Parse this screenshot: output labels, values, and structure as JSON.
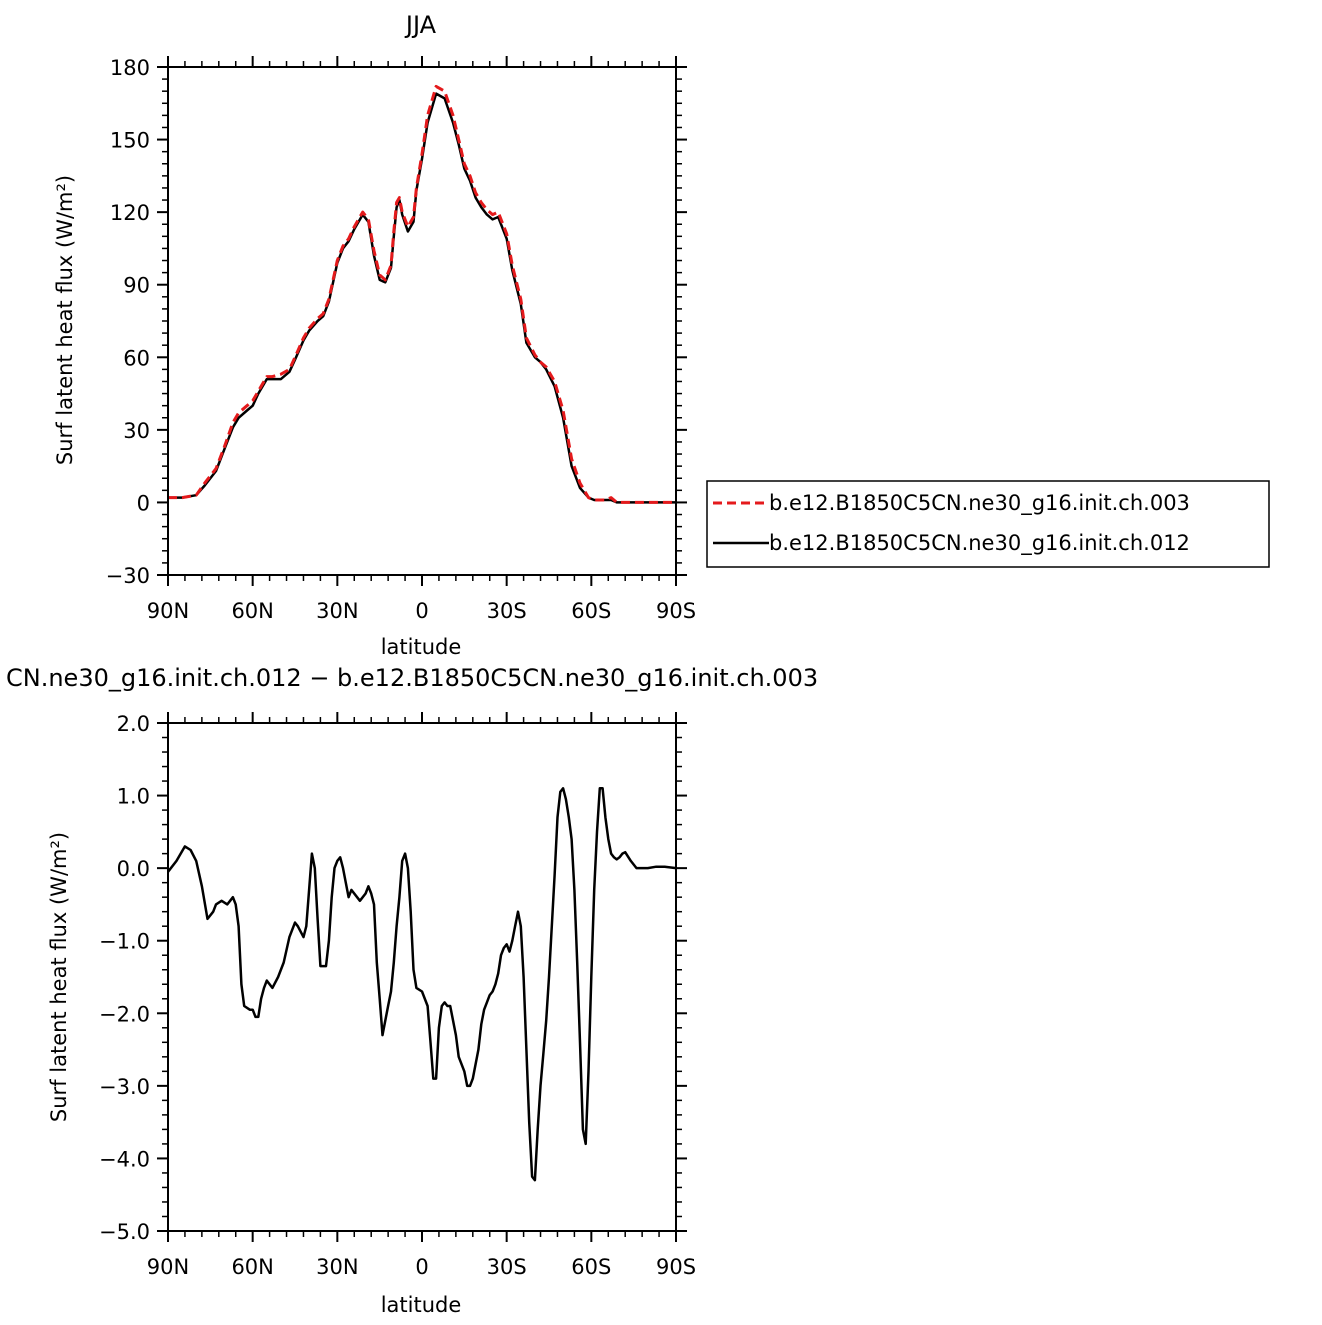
{
  "chart_data": [
    {
      "type": "line",
      "title": "JJA",
      "xlabel": "latitude",
      "ylabel": "Surf latent heat flux (W/m²)",
      "xlim": [
        90,
        -90
      ],
      "ylim": [
        -30,
        180
      ],
      "x_ticks": [
        90,
        60,
        30,
        0,
        -30,
        -60,
        -90
      ],
      "x_tick_labels": [
        "90N",
        "60N",
        "30N",
        "0",
        "30S",
        "60S",
        "90S"
      ],
      "y_ticks": [
        -30,
        0,
        30,
        60,
        90,
        120,
        150,
        180
      ],
      "y_tick_labels": [
        "−30",
        "0",
        "30",
        "60",
        "90",
        "120",
        "150",
        "180"
      ],
      "legend_position": "right",
      "series": [
        {
          "name": "b.e12.B1850C5CN.ne30_g16.init.ch.003",
          "color": "#e41a1c",
          "dash": "dashed",
          "x": [
            90,
            85,
            80,
            77,
            73,
            70,
            67,
            65,
            62,
            60,
            58,
            55,
            53,
            50,
            47,
            45,
            42,
            40,
            37,
            35,
            33,
            30,
            28,
            26,
            24,
            21,
            19,
            17,
            15,
            13,
            11,
            10,
            9,
            8,
            7,
            5,
            3,
            2,
            0,
            -2,
            -5,
            -8,
            -11,
            -13,
            -15,
            -17,
            -19,
            -21,
            -23,
            -25,
            -27,
            -30,
            -32,
            -35,
            -37,
            -40,
            -42,
            -44,
            -47,
            -50,
            -53,
            -56,
            -59,
            -61,
            -63,
            -65,
            -67,
            -69,
            -71,
            -73,
            -75,
            -78,
            -80,
            -82,
            -85,
            -90
          ],
          "values": [
            2,
            2,
            3,
            8,
            14,
            23,
            33,
            37,
            40,
            42,
            46,
            52,
            52,
            53,
            55,
            60,
            68,
            72,
            76,
            78,
            84,
            100,
            106,
            109,
            114,
            120,
            117,
            104,
            94,
            92,
            98,
            112,
            124,
            126,
            120,
            114,
            118,
            130,
            144,
            160,
            172,
            170,
            160,
            150,
            140,
            135,
            128,
            124,
            121,
            119,
            120,
            111,
            98,
            84,
            68,
            61,
            58,
            56,
            50,
            38,
            18,
            8,
            2,
            1,
            1,
            1,
            2,
            0,
            0,
            0,
            0,
            0,
            0,
            0,
            0,
            0
          ]
        },
        {
          "name": "b.e12.B1850C5CN.ne30_g16.init.ch.012",
          "color": "#000000",
          "dash": "solid",
          "x": [
            90,
            85,
            80,
            77,
            73,
            70,
            67,
            65,
            62,
            60,
            58,
            55,
            53,
            50,
            47,
            45,
            42,
            40,
            37,
            35,
            33,
            30,
            28,
            26,
            24,
            21,
            19,
            17,
            15,
            13,
            11,
            10,
            9,
            8,
            7,
            5,
            3,
            2,
            0,
            -2,
            -5,
            -8,
            -11,
            -13,
            -15,
            -17,
            -19,
            -21,
            -23,
            -25,
            -27,
            -30,
            -32,
            -35,
            -37,
            -40,
            -42,
            -44,
            -47,
            -50,
            -53,
            -56,
            -59,
            -61,
            -63,
            -65,
            -67,
            -69,
            -71,
            -73,
            -75,
            -78,
            -80,
            -82,
            -85,
            -90
          ],
          "values": [
            2,
            2,
            3,
            7,
            13,
            22,
            31,
            35,
            38,
            40,
            45,
            51,
            51,
            51,
            54,
            59,
            67,
            71,
            75,
            77,
            83,
            99,
            105,
            108,
            113,
            119,
            116,
            102,
            92,
            91,
            97,
            110,
            122,
            125,
            119,
            112,
            116,
            129,
            142,
            157,
            169,
            167,
            157,
            148,
            138,
            133,
            126,
            122,
            119,
            117,
            118,
            109,
            96,
            82,
            66,
            60,
            58,
            55,
            48,
            35,
            15,
            6,
            2,
            1,
            1,
            1,
            1,
            0,
            0,
            0,
            0,
            0,
            0,
            0,
            0,
            0
          ]
        }
      ]
    },
    {
      "type": "line",
      "title": "CN.ne30_g16.init.ch.012 − b.e12.B1850C5CN.ne30_g16.init.ch.003",
      "xlabel": "latitude",
      "ylabel": "Surf latent heat flux (W/m²)",
      "xlim": [
        90,
        -90
      ],
      "ylim": [
        -5,
        2
      ],
      "x_ticks": [
        90,
        60,
        30,
        0,
        -30,
        -60,
        -90
      ],
      "x_tick_labels": [
        "90N",
        "60N",
        "30N",
        "0",
        "30S",
        "60S",
        "90S"
      ],
      "y_ticks": [
        -5,
        -4,
        -3,
        -2,
        -1,
        0,
        1,
        2
      ],
      "y_tick_labels": [
        "−5.0",
        "−4.0",
        "−3.0",
        "−2.0",
        "−1.0",
        "0.0",
        "1.0",
        "2.0"
      ],
      "series": [
        {
          "color": "#000000",
          "dash": "solid",
          "x": [
            90,
            87,
            84,
            82,
            80,
            78,
            76,
            74,
            73,
            71,
            69,
            68,
            67,
            66,
            65,
            64,
            63,
            61,
            60,
            59,
            58,
            57,
            56,
            55,
            54,
            53,
            51,
            49,
            47,
            45,
            44,
            42,
            41,
            40,
            39,
            38,
            37,
            36,
            34,
            33,
            32,
            31,
            30,
            29,
            28,
            27,
            26,
            25,
            23,
            22,
            20,
            19,
            18,
            17,
            16,
            15,
            14,
            12,
            11,
            10,
            9,
            8,
            7,
            6,
            5,
            4,
            3,
            2,
            0,
            -2,
            -3,
            -4,
            -5,
            -6,
            -7,
            -8,
            -9,
            -10,
            -12,
            -13,
            -15,
            -16,
            -17,
            -18,
            -20,
            -21,
            -22,
            -23,
            -24,
            -25,
            -26,
            -27,
            -28,
            -29,
            -30,
            -31,
            -32,
            -33,
            -34,
            -35,
            -36,
            -37,
            -38,
            -39,
            -40,
            -41,
            -42,
            -43,
            -44,
            -45,
            -46,
            -47,
            -48,
            -49,
            -50,
            -51,
            -52,
            -53,
            -54,
            -55,
            -56,
            -57,
            -58,
            -59,
            -60,
            -61,
            -62,
            -63,
            -64,
            -65,
            -66,
            -67,
            -68,
            -69,
            -70,
            -71,
            -72,
            -74,
            -76,
            -78,
            -80,
            -83,
            -86,
            -90
          ],
          "values": [
            -0.05,
            0.1,
            0.3,
            0.25,
            0.1,
            -0.25,
            -0.7,
            -0.6,
            -0.5,
            -0.45,
            -0.5,
            -0.45,
            -0.4,
            -0.5,
            -0.8,
            -1.6,
            -1.9,
            -1.95,
            -1.95,
            -2.05,
            -2.05,
            -1.8,
            -1.65,
            -1.55,
            -1.6,
            -1.65,
            -1.5,
            -1.3,
            -0.95,
            -0.75,
            -0.8,
            -0.95,
            -0.8,
            -0.3,
            0.2,
            0.0,
            -0.7,
            -1.35,
            -1.35,
            -1.0,
            -0.4,
            0.0,
            0.1,
            0.15,
            0.0,
            -0.2,
            -0.4,
            -0.3,
            -0.4,
            -0.45,
            -0.35,
            -0.25,
            -0.35,
            -0.5,
            -1.3,
            -1.8,
            -2.3,
            -1.9,
            -1.7,
            -1.3,
            -0.8,
            -0.4,
            0.1,
            0.2,
            0.0,
            -0.6,
            -1.4,
            -1.65,
            -1.7,
            -1.9,
            -2.4,
            -2.9,
            -2.9,
            -2.2,
            -1.9,
            -1.85,
            -1.9,
            -1.9,
            -2.3,
            -2.6,
            -2.8,
            -3.0,
            -3.0,
            -2.9,
            -2.5,
            -2.15,
            -1.95,
            -1.85,
            -1.75,
            -1.7,
            -1.6,
            -1.45,
            -1.2,
            -1.1,
            -1.05,
            -1.15,
            -1.0,
            -0.8,
            -0.6,
            -0.8,
            -1.5,
            -2.5,
            -3.5,
            -4.25,
            -4.3,
            -3.6,
            -3.0,
            -2.55,
            -2.1,
            -1.5,
            -0.8,
            -0.1,
            0.7,
            1.05,
            1.1,
            0.95,
            0.7,
            0.4,
            -0.3,
            -1.3,
            -2.4,
            -3.6,
            -3.8,
            -2.8,
            -1.5,
            -0.3,
            0.5,
            1.1,
            1.1,
            0.7,
            0.4,
            0.2,
            0.15,
            0.12,
            0.15,
            0.2,
            0.22,
            0.1,
            0.0,
            0.0,
            0.0,
            0.02,
            0.02,
            0.0
          ]
        }
      ]
    }
  ]
}
